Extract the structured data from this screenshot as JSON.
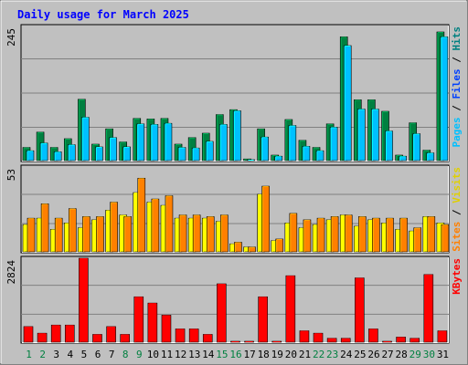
{
  "chart_data": {
    "type": "bar",
    "title": "Daily usage for March 2025",
    "categories": [
      "1",
      "2",
      "3",
      "4",
      "5",
      "6",
      "7",
      "8",
      "9",
      "10",
      "11",
      "12",
      "13",
      "14",
      "15",
      "16",
      "17",
      "18",
      "19",
      "20",
      "21",
      "22",
      "23",
      "24",
      "25",
      "26",
      "27",
      "28",
      "29",
      "30",
      "31"
    ],
    "weekend_days": [
      "1",
      "2",
      "8",
      "9",
      "15",
      "16",
      "22",
      "23",
      "29",
      "30"
    ],
    "panels": [
      {
        "name": "hits-files-pages",
        "ymax_label": "245",
        "ymax": 245,
        "series": [
          {
            "name": "Hits",
            "color": "#008040",
            "values": [
              24,
              52,
              24,
              40,
              112,
              30,
              58,
              34,
              77,
              76,
              77,
              30,
              42,
              50,
              84,
              93,
              3,
              58,
              10,
              75,
              37,
              24,
              67,
              226,
              111,
              111,
              90,
              10,
              69,
              19,
              235
            ]
          },
          {
            "name": "Files",
            "color": "#00c0ff",
            "values": [
              18,
              32,
              16,
              29,
              79,
              25,
              42,
              25,
              67,
              66,
              68,
              24,
              23,
              35,
              66,
              91,
              1,
              43,
              8,
              64,
              26,
              18,
              61,
              210,
              94,
              94,
              54,
              8,
              49,
              14,
              226
            ]
          },
          {
            "name": "Pages",
            "color": "#00c0ff",
            "values": [
              18,
              32,
              16,
              29,
              79,
              25,
              42,
              25,
              67,
              66,
              68,
              24,
              23,
              35,
              66,
              91,
              1,
              43,
              8,
              64,
              26,
              18,
              61,
              210,
              94,
              94,
              54,
              8,
              49,
              14,
              226
            ]
          }
        ],
        "axis_label_parts": [
          {
            "text": "Pages",
            "color": "#00c0ff"
          },
          {
            "text": " / ",
            "color": "#000000"
          },
          {
            "text": "Files",
            "color": "#0040ff"
          },
          {
            "text": " / ",
            "color": "#000000"
          },
          {
            "text": "Hits",
            "color": "#008080"
          }
        ]
      },
      {
        "name": "visits-sites",
        "ymax_label": "53",
        "ymax": 53,
        "series": [
          {
            "name": "Visits",
            "color": "#ffff00",
            "values": [
              17,
              21,
              14,
              18,
              15,
              20,
              26,
              23,
              37,
              31,
              29,
              21,
              21,
              21,
              19,
              5,
              3,
              36,
              7,
              18,
              15,
              17,
              20,
              23,
              16,
              20,
              18,
              14,
              13,
              22,
              18
            ]
          },
          {
            "name": "Sites",
            "color": "#ff8000",
            "values": [
              21,
              30,
              21,
              27,
              22,
              22,
              31,
              22,
              46,
              33,
              35,
              23,
              23,
              22,
              23,
              6,
              3,
              41,
              8,
              24,
              20,
              21,
              22,
              23,
              22,
              21,
              21,
              21,
              15,
              22,
              17
            ]
          }
        ],
        "axis_label_parts": [
          {
            "text": "Sites",
            "color": "#ff8000"
          },
          {
            "text": " / ",
            "color": "#000000"
          },
          {
            "text": "Visits",
            "color": "#e0d000"
          }
        ]
      },
      {
        "name": "kbytes",
        "ymax_label": "2824",
        "ymax": 2824,
        "series": [
          {
            "name": "KBytes",
            "color": "#ff0000",
            "values": [
              525,
              302,
              576,
              576,
              2824,
              262,
              525,
              262,
              1527,
              1316,
              908,
              446,
              446,
              262,
              1964,
              3,
              3,
              1527,
              3,
              2236,
              382,
              302,
              131,
              131,
              2162,
              446,
              15,
              172,
              131,
              2276,
              382
            ]
          }
        ],
        "axis_label_parts": [
          {
            "text": "KBytes",
            "color": "#ff0000"
          }
        ]
      }
    ]
  }
}
